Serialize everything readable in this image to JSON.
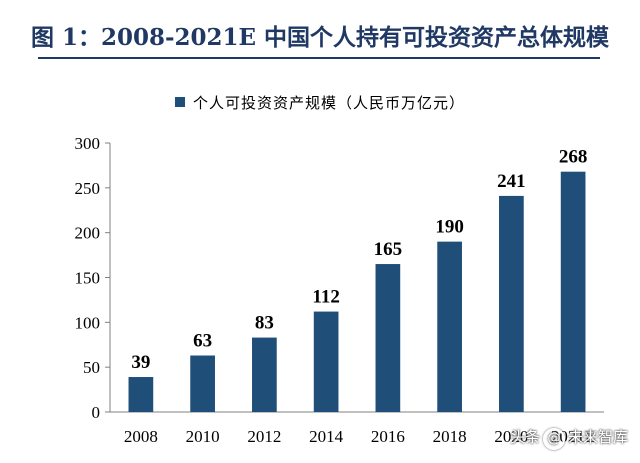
{
  "chart_data": {
    "type": "bar",
    "title": "图 1：2008-2021E 中国个人持有可投资资产总体规模",
    "legend": [
      "个人可投资资产规模（人民币万亿元）"
    ],
    "legend_position": "top",
    "categories": [
      "2008",
      "2010",
      "2012",
      "2014",
      "2016",
      "2018",
      "2020",
      "2021E"
    ],
    "values": [
      39,
      63,
      83,
      112,
      165,
      190,
      241,
      268
    ],
    "yticks": [
      0,
      50,
      100,
      150,
      200,
      250,
      300
    ],
    "ylim": [
      0,
      300
    ],
    "bar_color": "#1f4e79",
    "grid": false
  },
  "watermark": {
    "prefix": "头条",
    "at": "@",
    "name": "未来智库"
  }
}
